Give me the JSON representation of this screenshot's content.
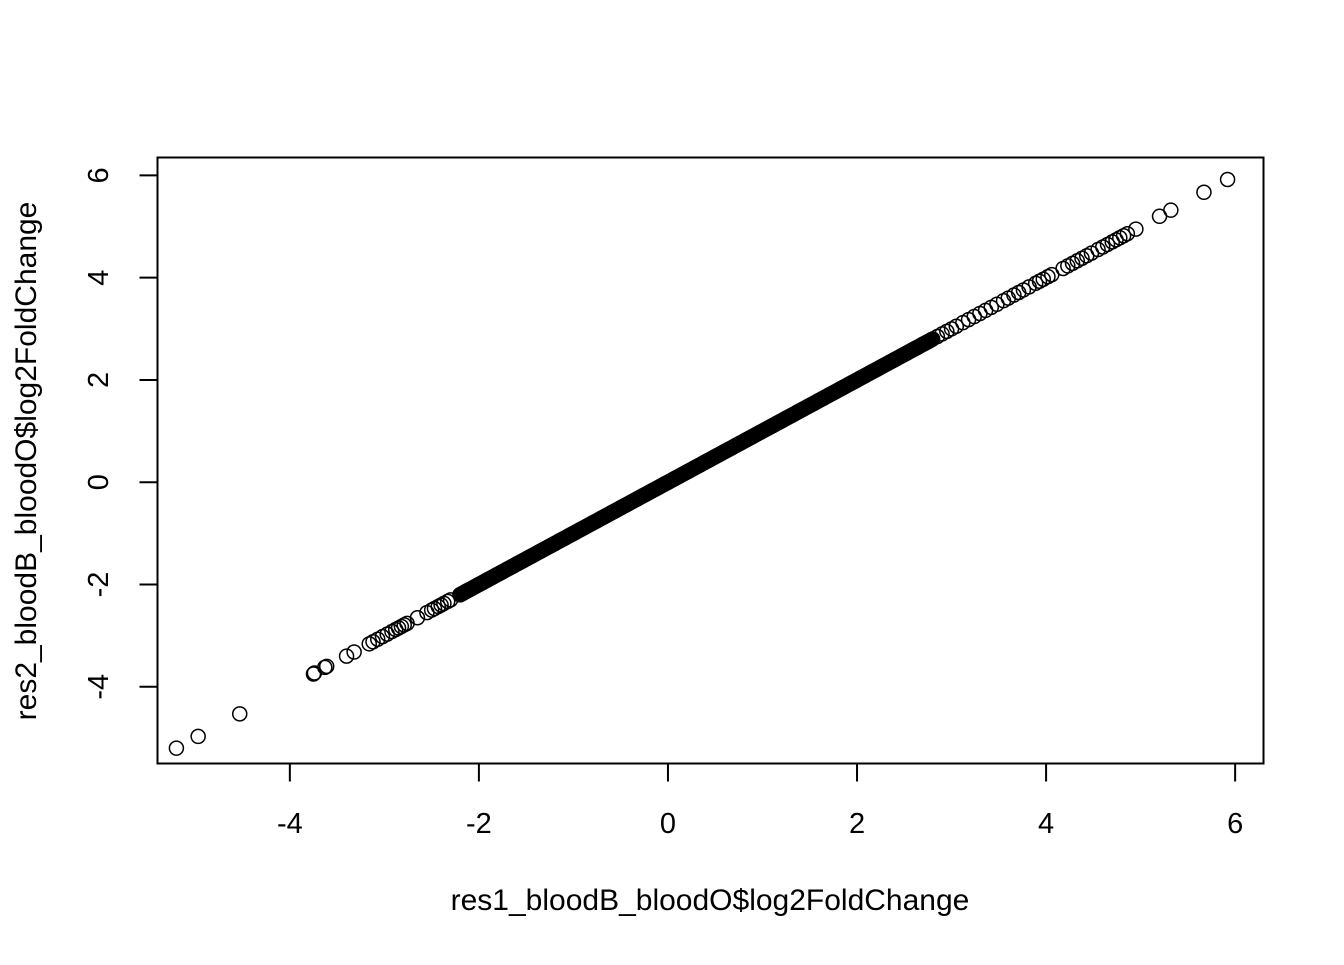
{
  "chart_data": {
    "type": "scatter",
    "title": "",
    "xlabel": "res1_bloodB_bloodO$log2FoldChange",
    "ylabel": "res2_bloodB_bloodO$log2FoldChange",
    "xlim": [
      -5.4,
      6.3
    ],
    "ylim": [
      -5.5,
      6.35
    ],
    "xticks": [
      -4,
      -2,
      0,
      2,
      4,
      6
    ],
    "yticks": [
      -4,
      -2,
      0,
      2,
      4,
      6
    ],
    "xtick_labels": [
      "-4",
      "-2",
      "0",
      "2",
      "4",
      "6"
    ],
    "ytick_labels": [
      "-4",
      "-2",
      "0",
      "2",
      "4",
      "6"
    ],
    "grid": false,
    "legend": "none",
    "marker": "open-circle",
    "marker_color": "#000000",
    "dense_band": {
      "from": -2.2,
      "to": 2.8,
      "note": "thousands of points lie on y = x in this range"
    },
    "points": [
      [
        -5.2,
        -5.2
      ],
      [
        -4.97,
        -4.97
      ],
      [
        -4.53,
        -4.53
      ],
      [
        -3.75,
        -3.75
      ],
      [
        -3.74,
        -3.73
      ],
      [
        -3.63,
        -3.62
      ],
      [
        -3.61,
        -3.6
      ],
      [
        -3.4,
        -3.4
      ],
      [
        -3.32,
        -3.32
      ],
      [
        -3.16,
        -3.16
      ],
      [
        -3.12,
        -3.12
      ],
      [
        -3.07,
        -3.07
      ],
      [
        -3.02,
        -3.02
      ],
      [
        -2.97,
        -2.97
      ],
      [
        -2.92,
        -2.92
      ],
      [
        -2.88,
        -2.88
      ],
      [
        -2.85,
        -2.85
      ],
      [
        -2.82,
        -2.82
      ],
      [
        -2.79,
        -2.79
      ],
      [
        -2.76,
        -2.76
      ],
      [
        -2.65,
        -2.65
      ],
      [
        -2.55,
        -2.55
      ],
      [
        -2.5,
        -2.5
      ],
      [
        -2.47,
        -2.47
      ],
      [
        -2.43,
        -2.43
      ],
      [
        -2.4,
        -2.4
      ],
      [
        -2.37,
        -2.37
      ],
      [
        -2.33,
        -2.33
      ],
      [
        -2.3,
        -2.3
      ],
      [
        -2.2,
        -2.2
      ],
      [
        -2.17,
        -2.17
      ],
      [
        -2.14,
        -2.14
      ],
      [
        -2.12,
        -2.12
      ],
      [
        2.85,
        2.85
      ],
      [
        2.9,
        2.9
      ],
      [
        2.95,
        2.95
      ],
      [
        3.0,
        3.0
      ],
      [
        3.05,
        3.05
      ],
      [
        3.12,
        3.12
      ],
      [
        3.18,
        3.18
      ],
      [
        3.24,
        3.24
      ],
      [
        3.3,
        3.3
      ],
      [
        3.36,
        3.36
      ],
      [
        3.42,
        3.42
      ],
      [
        3.48,
        3.48
      ],
      [
        3.55,
        3.55
      ],
      [
        3.6,
        3.6
      ],
      [
        3.66,
        3.66
      ],
      [
        3.71,
        3.71
      ],
      [
        3.76,
        3.76
      ],
      [
        3.82,
        3.82
      ],
      [
        3.89,
        3.89
      ],
      [
        3.93,
        3.93
      ],
      [
        3.97,
        3.97
      ],
      [
        4.02,
        4.02
      ],
      [
        4.06,
        4.06
      ],
      [
        4.18,
        4.18
      ],
      [
        4.23,
        4.23
      ],
      [
        4.28,
        4.28
      ],
      [
        4.33,
        4.33
      ],
      [
        4.38,
        4.38
      ],
      [
        4.43,
        4.43
      ],
      [
        4.48,
        4.48
      ],
      [
        4.55,
        4.55
      ],
      [
        4.6,
        4.6
      ],
      [
        4.65,
        4.65
      ],
      [
        4.7,
        4.7
      ],
      [
        4.74,
        4.74
      ],
      [
        4.78,
        4.78
      ],
      [
        4.82,
        4.82
      ],
      [
        4.86,
        4.86
      ],
      [
        4.95,
        4.95
      ],
      [
        5.2,
        5.2
      ],
      [
        5.32,
        5.32
      ],
      [
        5.67,
        5.67
      ],
      [
        5.92,
        5.92
      ]
    ]
  }
}
